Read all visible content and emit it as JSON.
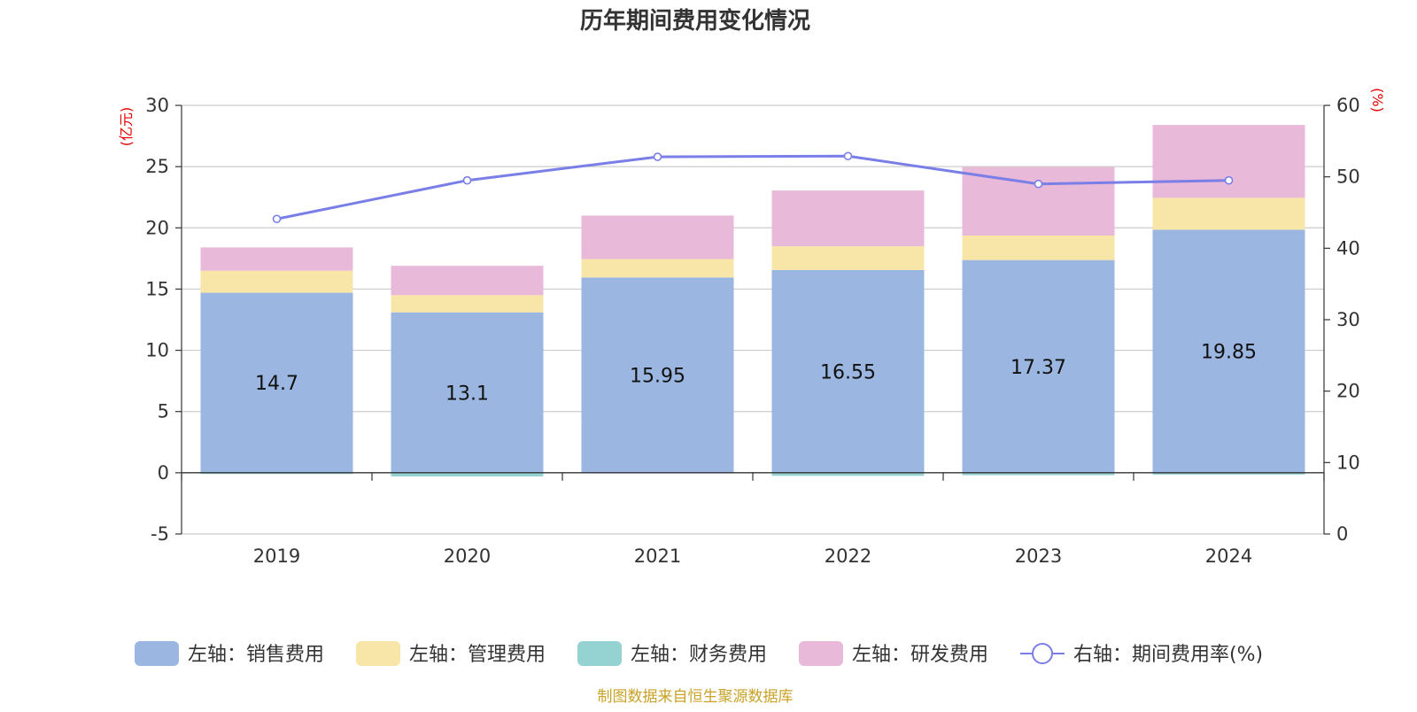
{
  "chart_data": {
    "type": "bar",
    "stacked": true,
    "title": "历年期间费用变化情况",
    "categories": [
      "2019",
      "2020",
      "2021",
      "2022",
      "2023",
      "2024"
    ],
    "y_left": {
      "unit_label": "(亿元)",
      "min": -5,
      "max": 30,
      "ticks": [
        -5,
        0,
        5,
        10,
        15,
        20,
        25,
        30
      ]
    },
    "y_right": {
      "unit_label": "(%)",
      "min": 0,
      "max": 60,
      "ticks": [
        0,
        10,
        20,
        30,
        40,
        50,
        60
      ]
    },
    "series": [
      {
        "name": "左轴：销售费用",
        "axis": "left",
        "type": "bar",
        "color": "#9bb7e1",
        "values": [
          14.7,
          13.1,
          15.95,
          16.55,
          17.37,
          19.85
        ],
        "labels": [
          "14.7",
          "13.1",
          "15.95",
          "16.55",
          "17.37",
          "19.85"
        ]
      },
      {
        "name": "左轴：管理费用",
        "axis": "left",
        "type": "bar",
        "color": "#f8e6a9",
        "values": [
          1.8,
          1.4,
          1.5,
          1.95,
          2.0,
          2.6
        ]
      },
      {
        "name": "左轴：财务费用",
        "axis": "left",
        "type": "bar",
        "color": "#95d3d3",
        "values": [
          -0.1,
          -0.3,
          -0.05,
          -0.25,
          -0.2,
          -0.15
        ]
      },
      {
        "name": "左轴：研发费用",
        "axis": "left",
        "type": "bar",
        "color": "#e8b9d9",
        "values": [
          1.9,
          2.4,
          3.55,
          4.55,
          5.6,
          5.95
        ]
      },
      {
        "name": "右轴：期间费用率(%)",
        "axis": "right",
        "type": "line",
        "color": "#7a7fe8",
        "values": [
          44.1,
          49.5,
          52.8,
          52.9,
          49.0,
          49.5
        ]
      }
    ],
    "grid": true,
    "legend": "bottom",
    "source": "制图数据来自恒生聚源数据库"
  }
}
